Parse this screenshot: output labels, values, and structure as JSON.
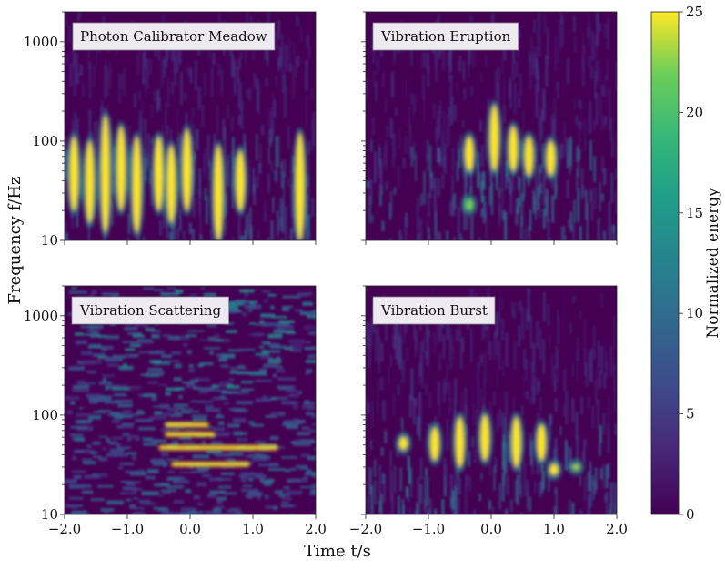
{
  "chart_data": {
    "type": "heatmap",
    "xlabel": "Time t/s",
    "ylabel": "Frequency f/Hz",
    "xlim": [
      -2.0,
      2.0
    ],
    "ylim": [
      10,
      2000
    ],
    "yscale": "log",
    "x_ticks": [
      -2.0,
      -1.0,
      0.0,
      1.0,
      2.0
    ],
    "x_tick_labels": [
      "−2.0",
      "−1.0",
      "0.0",
      "1.0",
      "2.0"
    ],
    "y_ticks": [
      10,
      100,
      1000
    ],
    "y_tick_labels": [
      "10",
      "100",
      "1000"
    ],
    "colorbar": {
      "label": "Normalized energy",
      "range": [
        0,
        25
      ],
      "ticks": [
        0,
        5,
        10,
        15,
        20,
        25
      ],
      "tick_labels": [
        "0",
        "5",
        "10",
        "15",
        "20",
        "25"
      ],
      "colormap": "viridis"
    },
    "panels": [
      {
        "title": "Photon Calibrator Meadow",
        "features": [
          {
            "t": -1.85,
            "f_low": 20,
            "f_high": 110,
            "energy": 25
          },
          {
            "t": -1.6,
            "f_low": 15,
            "f_high": 100,
            "energy": 25
          },
          {
            "t": -1.35,
            "f_low": 12,
            "f_high": 180,
            "energy": 25
          },
          {
            "t": -1.1,
            "f_low": 20,
            "f_high": 140,
            "energy": 25
          },
          {
            "t": -0.85,
            "f_low": 12,
            "f_high": 110,
            "energy": 25
          },
          {
            "t": -0.5,
            "f_low": 20,
            "f_high": 110,
            "energy": 25
          },
          {
            "t": -0.3,
            "f_low": 15,
            "f_high": 90,
            "energy": 25
          },
          {
            "t": -0.05,
            "f_low": 20,
            "f_high": 130,
            "energy": 25
          },
          {
            "t": 0.45,
            "f_low": 10,
            "f_high": 90,
            "energy": 25
          },
          {
            "t": 0.8,
            "f_low": 20,
            "f_high": 80,
            "energy": 25
          },
          {
            "t": 1.75,
            "f_low": 10,
            "f_high": 120,
            "energy": 25
          }
        ]
      },
      {
        "title": "Vibration Eruption",
        "features": [
          {
            "t": -0.35,
            "f_low": 50,
            "f_high": 110,
            "energy": 25
          },
          {
            "t": 0.05,
            "f_low": 50,
            "f_high": 230,
            "energy": 25
          },
          {
            "t": 0.35,
            "f_low": 50,
            "f_high": 140,
            "energy": 25
          },
          {
            "t": 0.6,
            "f_low": 45,
            "f_high": 110,
            "energy": 25
          },
          {
            "t": 0.95,
            "f_low": 45,
            "f_high": 100,
            "energy": 25
          },
          {
            "t": -0.35,
            "f_low": 20,
            "f_high": 26,
            "energy": 22
          }
        ]
      },
      {
        "title": "Vibration Scattering",
        "features": [
          {
            "t_start": -0.4,
            "t_end": 0.3,
            "f": 80,
            "energy": 25
          },
          {
            "t_start": -0.4,
            "t_end": 0.4,
            "f": 64,
            "energy": 25
          },
          {
            "t_start": -0.5,
            "t_end": 1.4,
            "f": 47,
            "energy": 25
          },
          {
            "t_start": -0.3,
            "t_end": 0.95,
            "f": 32,
            "energy": 25
          }
        ]
      },
      {
        "title": "Vibration Burst",
        "features": [
          {
            "t": -1.4,
            "f_low": 45,
            "f_high": 60,
            "energy": 25
          },
          {
            "t": -0.9,
            "f_low": 35,
            "f_high": 75,
            "energy": 25
          },
          {
            "t": -0.5,
            "f_low": 30,
            "f_high": 95,
            "energy": 25
          },
          {
            "t": -0.1,
            "f_low": 35,
            "f_high": 100,
            "energy": 25
          },
          {
            "t": 0.4,
            "f_low": 30,
            "f_high": 95,
            "energy": 25
          },
          {
            "t": 0.8,
            "f_low": 35,
            "f_high": 80,
            "energy": 25
          },
          {
            "t": 1.0,
            "f_low": 25,
            "f_high": 32,
            "energy": 25
          },
          {
            "t": 1.35,
            "f_low": 28,
            "f_high": 32,
            "energy": 23
          }
        ]
      }
    ]
  }
}
